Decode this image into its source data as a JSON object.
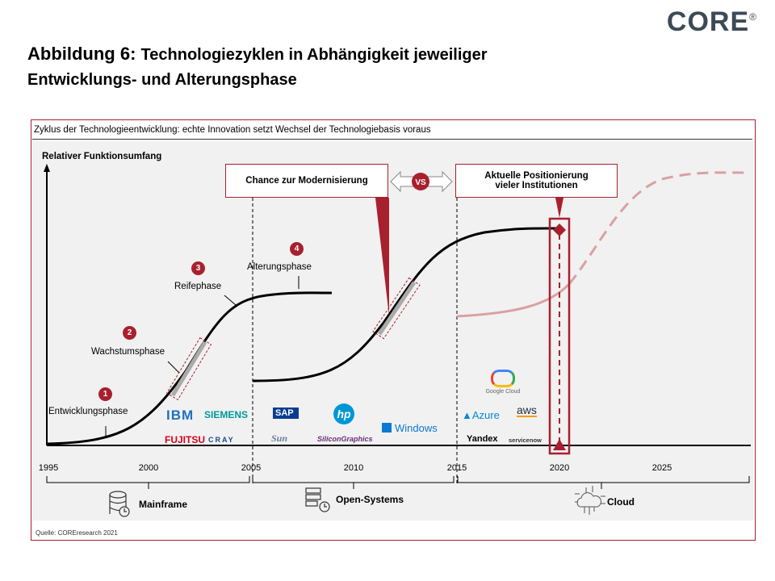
{
  "brand": {
    "logo": "CORE",
    "registered": "®"
  },
  "title": {
    "prefix": "Abbildung 6:",
    "line1": "Technologiezyklen in Abhängigkeit jeweiliger",
    "line2": "Entwicklungs- und Alterungsphase"
  },
  "figure": {
    "subtitle": "Zyklus der Technologieentwicklung:  echte Innovation  setzt Wechsel der Technologiebasis  voraus",
    "y_axis_label": "Relativer Funktionsumfang",
    "phases": [
      {
        "number": "1",
        "label": "Entwicklungsphase"
      },
      {
        "number": "2",
        "label": "Wachstumsphase"
      },
      {
        "number": "3",
        "label": "Reifephase"
      },
      {
        "number": "4",
        "label": "Alterungsphase"
      }
    ],
    "callouts": {
      "left": "Chance zur Modernisierung",
      "vs": "VS",
      "right_line1": "Aktuelle Positionierung",
      "right_line2": "vieler Institutionen"
    },
    "years": [
      "1995",
      "2000",
      "2005",
      "2010",
      "2015",
      "2020",
      "2025"
    ],
    "eras": [
      {
        "label": "Mainframe",
        "icon": "database-clock-icon"
      },
      {
        "label": "Open-Systems",
        "icon": "server-clock-icon"
      },
      {
        "label": "Cloud",
        "icon": "cloud-circuit-icon"
      }
    ],
    "vendors": {
      "mainframe": [
        "IBM",
        "SIEMENS",
        "FUJITSU",
        "CRAY"
      ],
      "open_systems": [
        "SAP",
        "hp",
        "Sun",
        "SiliconGraphics",
        "Windows"
      ],
      "cloud": [
        "Google Cloud",
        "Azure",
        "aws",
        "Yandex",
        "servicenow"
      ]
    },
    "colors": {
      "accent": "#a8202e",
      "future_curve": "#d9a0a3"
    },
    "source": "Quelle:  COREresearch 2021"
  }
}
